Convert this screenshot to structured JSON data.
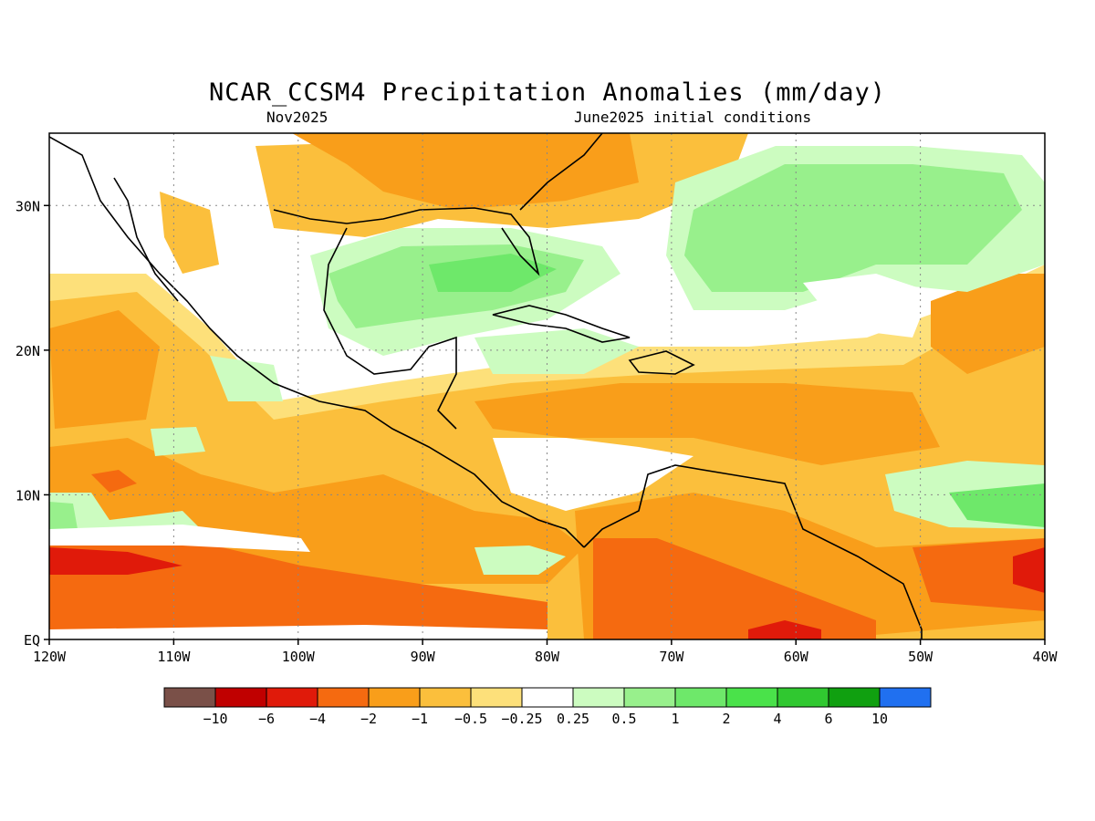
{
  "title": "NCAR_CCSM4 Precipitation Anomalies (mm/day)",
  "subtitle_left": "Nov2025",
  "subtitle_right": "June2025 initial conditions",
  "map": {
    "lon_range": [
      -120,
      -40
    ],
    "lat_range": [
      0,
      35
    ],
    "lon_ticks": [
      {
        "value": -120,
        "label": "120W"
      },
      {
        "value": -110,
        "label": "110W"
      },
      {
        "value": -100,
        "label": "100W"
      },
      {
        "value": -90,
        "label": "90W"
      },
      {
        "value": -80,
        "label": "80W"
      },
      {
        "value": -70,
        "label": "70W"
      },
      {
        "value": -60,
        "label": "60W"
      },
      {
        "value": -50,
        "label": "50W"
      },
      {
        "value": -40,
        "label": "40W"
      }
    ],
    "lat_ticks": [
      {
        "value": 0,
        "label": "EQ"
      },
      {
        "value": 10,
        "label": "10N"
      },
      {
        "value": 20,
        "label": "20N"
      },
      {
        "value": 30,
        "label": "30N"
      }
    ],
    "grid": "dotted"
  },
  "colorbar": {
    "colors": [
      "#7a5048",
      "#c00000",
      "#e01a0a",
      "#f56a10",
      "#f99e1a",
      "#fbbf3c",
      "#fde07a",
      "#ffffff",
      "#ccfcc0",
      "#98f08c",
      "#6ee86a",
      "#4ae24a",
      "#30c830",
      "#10a010",
      "#2070f0"
    ],
    "labels": [
      "−10",
      "−6",
      "−4",
      "−2",
      "−1",
      "−0.5",
      "−0.25",
      "0.25",
      "0.5",
      "1",
      "2",
      "4",
      "6",
      "10"
    ]
  }
}
